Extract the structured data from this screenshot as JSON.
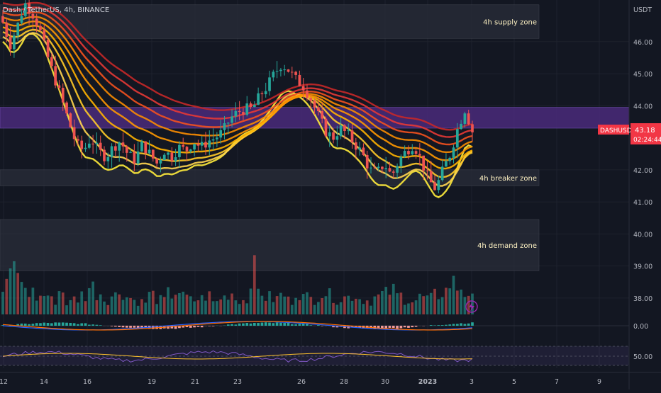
{
  "header": {
    "symbol_line": "Dash / TetherUS, 4h, BINANCE"
  },
  "colors": {
    "background": "#131722",
    "up": "#26a69a",
    "down": "#ef5350",
    "zone_gray": "#2a2e39",
    "zone_purple": "#4a2a7a",
    "zone_text": "#fff3c4",
    "axis_text": "#b2b5be",
    "price_label": "#f23645"
  },
  "chart_data": {
    "type": "candlestick",
    "title": "Dash / TetherUS, 4h, BINANCE",
    "currency": "USDT",
    "ylim": [
      37.4,
      47.3
    ],
    "y_ticks": [
      "46.00",
      "45.00",
      "44.00",
      "42.00",
      "41.00",
      "40.00",
      "39.00",
      "38.00"
    ],
    "x_ticks": [
      "12",
      "14",
      "16",
      "19",
      "21",
      "23",
      "26",
      "28",
      "30",
      "2023",
      "3",
      "5",
      "7",
      "9"
    ],
    "zones": [
      {
        "label": "4h supply zone",
        "low": 46.1,
        "high": 47.15,
        "style": "gray"
      },
      {
        "label": "",
        "low": 43.3,
        "high": 43.95,
        "style": "purple"
      },
      {
        "label": "4h breaker zone",
        "low": 41.5,
        "high": 42.0,
        "style": "gray"
      },
      {
        "label": "4h demand zone",
        "low": 38.85,
        "high": 40.45,
        "style": "gray"
      }
    ],
    "candles": {
      "close_path": [
        46.6,
        45.9,
        46.5,
        47.2,
        46.9,
        46.4,
        45.6,
        44.9,
        44.2,
        43.5,
        42.8,
        42.6,
        43.0,
        42.6,
        42.4,
        42.7,
        42.9,
        42.5,
        42.3,
        42.8,
        42.5,
        42.2,
        42.6,
        42.4,
        42.7,
        42.6,
        42.9,
        42.7,
        42.9,
        43.0,
        43.2,
        43.6,
        43.8,
        43.9,
        43.9,
        44.3,
        44.6,
        45.0,
        45.3,
        45.1,
        44.8,
        44.6,
        44.2,
        43.7,
        43.2,
        43.0,
        43.3,
        43.1,
        42.8,
        42.5,
        42.0,
        41.9,
        42.2,
        41.8,
        42.3,
        42.6,
        42.8,
        42.3,
        41.7,
        41.4,
        42.0,
        42.5,
        43.3,
        43.9,
        43.2
      ]
    },
    "volume": {
      "scale_max": 100,
      "values": [
        30,
        45,
        60,
        35,
        28,
        22,
        25,
        18,
        30,
        15,
        20,
        25,
        35,
        28,
        20,
        24,
        30,
        22,
        18,
        16,
        25,
        20,
        18,
        26,
        30,
        22,
        18,
        20,
        24,
        16,
        22,
        28,
        20,
        18,
        55,
        30,
        22,
        20,
        25,
        18,
        30,
        22,
        20,
        26,
        28,
        24,
        20,
        22,
        25,
        20,
        18,
        22,
        26,
        30,
        24,
        20,
        18,
        22,
        20,
        25,
        30,
        40,
        35,
        28,
        20
      ]
    },
    "macd": {
      "zero_label": "0.00"
    },
    "rsi": {
      "mid_label": "50.00"
    },
    "price_label": {
      "symbol": "DASHUSDT",
      "price": 43.18,
      "price_text": "43.18",
      "countdown": "02:24:44"
    }
  }
}
